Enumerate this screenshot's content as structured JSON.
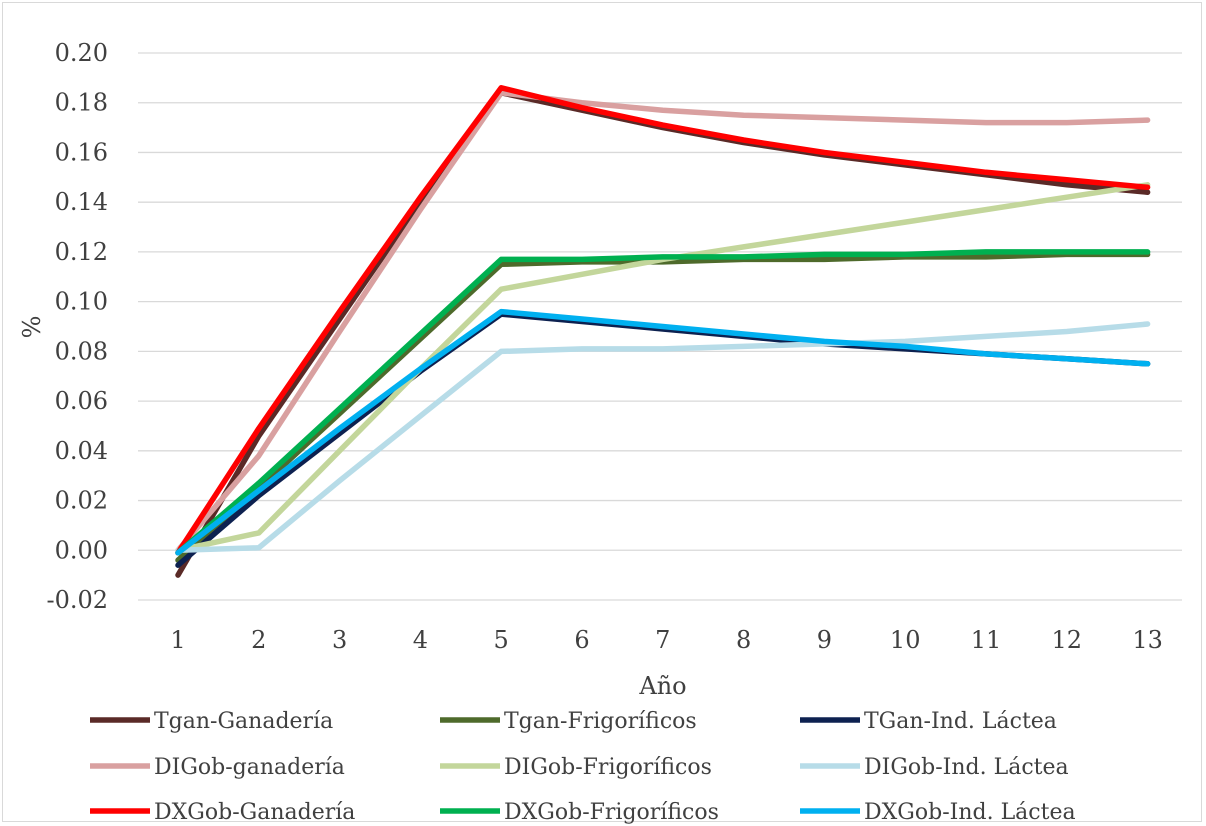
{
  "chart_data": {
    "type": "line",
    "title": "",
    "xlabel": "Año",
    "ylabel": "%",
    "ylim": [
      -0.02,
      0.2
    ],
    "y_ticks": [
      "-0.02",
      "0.00",
      "0.02",
      "0.04",
      "0.06",
      "0.08",
      "0.10",
      "0.12",
      "0.14",
      "0.16",
      "0.18",
      "0.20"
    ],
    "grid": true,
    "legend_position": "bottom",
    "x": [
      1,
      2,
      3,
      4,
      5,
      6,
      7,
      8,
      9,
      10,
      11,
      12,
      13
    ],
    "series": [
      {
        "name": "Tgan-Ganadería",
        "color": "#5a2a27",
        "values": [
          -0.01,
          0.046,
          0.093,
          0.14,
          0.184,
          0.177,
          0.17,
          0.164,
          0.159,
          0.155,
          0.151,
          0.147,
          0.144
        ]
      },
      {
        "name": "Tgan-Frigoríficos",
        "color": "#4e6a2b",
        "values": [
          -0.004,
          0.025,
          0.055,
          0.085,
          0.115,
          0.116,
          0.116,
          0.117,
          0.117,
          0.118,
          0.118,
          0.119,
          0.119
        ]
      },
      {
        "name": "TGan-Ind. Láctea",
        "color": "#0d2150",
        "values": [
          -0.006,
          0.022,
          0.047,
          0.072,
          0.095,
          0.092,
          0.089,
          0.086,
          0.083,
          0.081,
          0.079,
          0.077,
          0.075
        ]
      },
      {
        "name": "DIGob-ganadería",
        "color": "#d9a0a0",
        "values": [
          0.0,
          0.038,
          0.088,
          0.137,
          0.184,
          0.18,
          0.177,
          0.175,
          0.174,
          0.173,
          0.172,
          0.172,
          0.173
        ]
      },
      {
        "name": "DIGob-Frigoríficos",
        "color": "#c3d69b",
        "values": [
          0.0,
          0.007,
          0.04,
          0.073,
          0.105,
          0.111,
          0.117,
          0.122,
          0.127,
          0.132,
          0.137,
          0.142,
          0.147
        ]
      },
      {
        "name": "DIGob-Ind. Láctea",
        "color": "#b7dce8",
        "values": [
          0.0,
          0.001,
          0.028,
          0.054,
          0.08,
          0.081,
          0.081,
          0.082,
          0.083,
          0.084,
          0.086,
          0.088,
          0.091
        ]
      },
      {
        "name": "DXGob-Ganadería",
        "color": "#ff0000",
        "values": [
          -0.001,
          0.049,
          0.096,
          0.142,
          0.186,
          0.178,
          0.171,
          0.165,
          0.16,
          0.156,
          0.152,
          0.149,
          0.146
        ]
      },
      {
        "name": "DXGob-Frigoríficos",
        "color": "#00b050",
        "values": [
          -0.001,
          0.027,
          0.057,
          0.087,
          0.117,
          0.117,
          0.118,
          0.118,
          0.119,
          0.119,
          0.12,
          0.12,
          0.12
        ]
      },
      {
        "name": "DXGob-Ind. Láctea",
        "color": "#00b0f0",
        "values": [
          -0.001,
          0.024,
          0.049,
          0.073,
          0.096,
          0.093,
          0.09,
          0.087,
          0.084,
          0.082,
          0.079,
          0.077,
          0.075
        ]
      }
    ]
  }
}
